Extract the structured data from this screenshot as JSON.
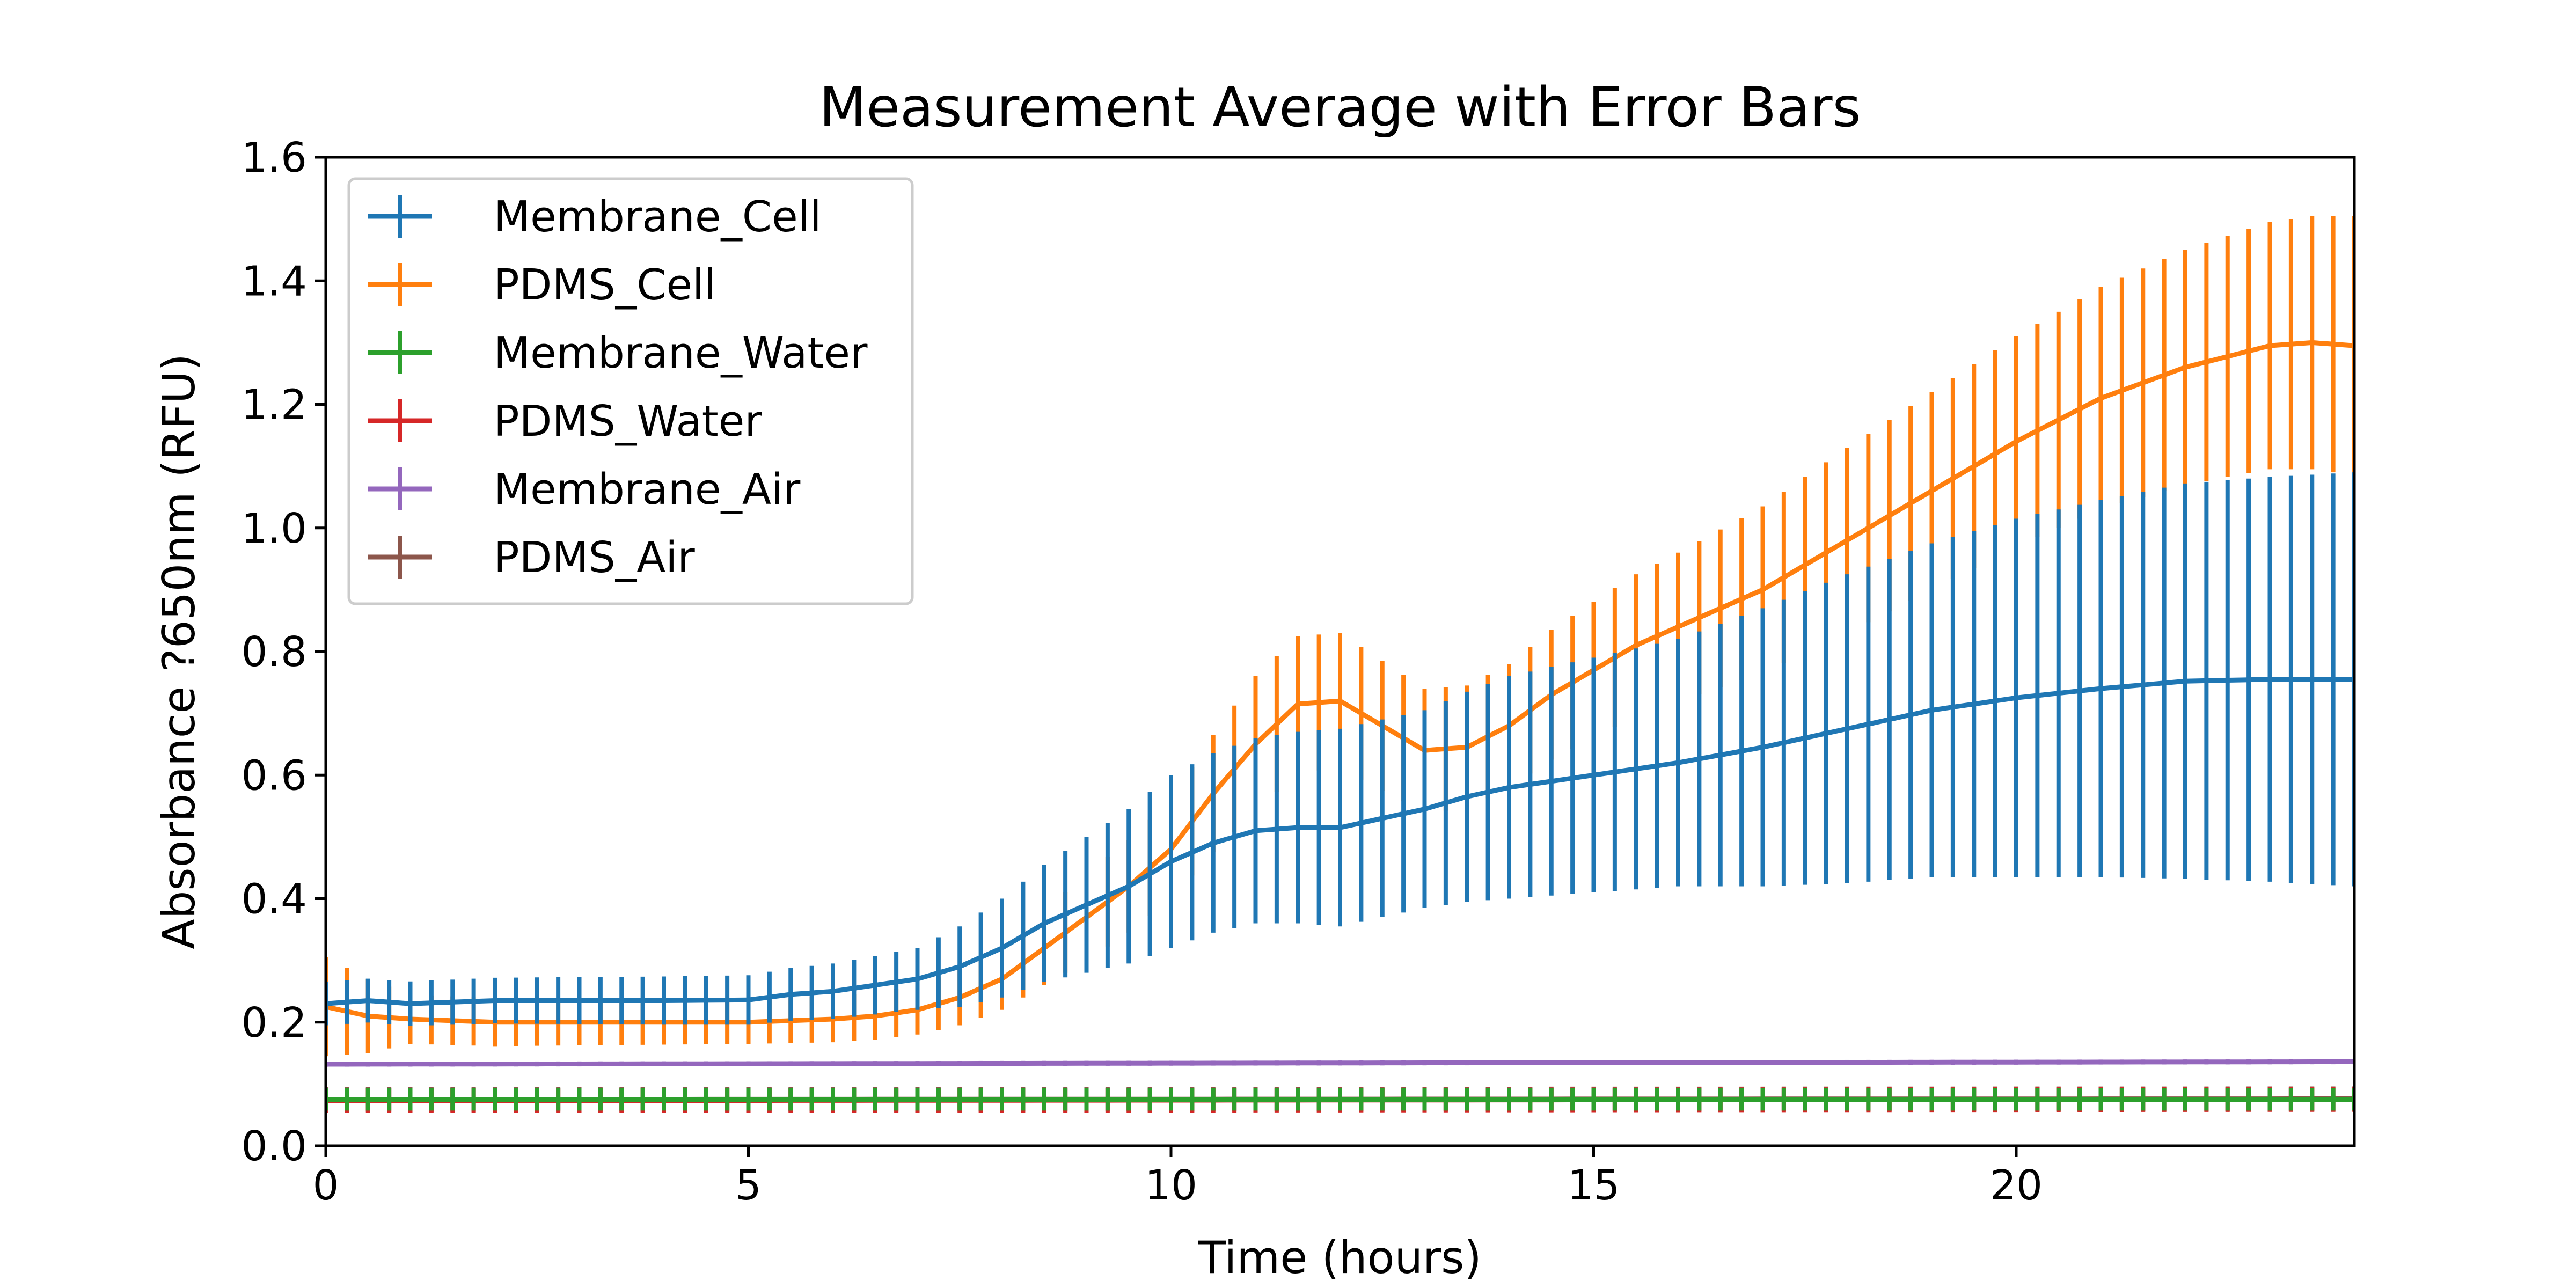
{
  "chart_data": {
    "type": "line",
    "title": "Measurement Average with Error Bars",
    "xlabel": "Time (hours)",
    "ylabel": "Absorbance ?650nm (RFU)",
    "xlim": [
      0,
      24
    ],
    "ylim": [
      0,
      1.6
    ],
    "xticks": [
      0,
      5,
      10,
      15,
      20
    ],
    "yticks": [
      0.0,
      0.2,
      0.4,
      0.6,
      0.8,
      1.0,
      1.2,
      1.4,
      1.6
    ],
    "xtick_labels": [
      "0",
      "5",
      "10",
      "15",
      "20"
    ],
    "ytick_labels": [
      "0.0",
      "0.2",
      "0.4",
      "0.6",
      "0.8",
      "1.0",
      "1.2",
      "1.4",
      "1.6"
    ],
    "grid": false,
    "legend_position": "top-left",
    "error_bars": true,
    "sampling_interval_hours": 0.25,
    "series": [
      {
        "name": "Membrane_Cell",
        "color": "#1f77b4",
        "knots": [
          [
            0,
            0.23
          ],
          [
            0.5,
            0.235
          ],
          [
            1,
            0.23
          ],
          [
            2,
            0.235
          ],
          [
            3,
            0.235
          ],
          [
            4,
            0.235
          ],
          [
            5,
            0.236
          ],
          [
            5.5,
            0.245
          ],
          [
            6,
            0.25
          ],
          [
            6.5,
            0.26
          ],
          [
            7,
            0.27
          ],
          [
            7.5,
            0.29
          ],
          [
            8,
            0.32
          ],
          [
            8.5,
            0.36
          ],
          [
            9,
            0.39
          ],
          [
            9.5,
            0.42
          ],
          [
            10,
            0.46
          ],
          [
            10.5,
            0.49
          ],
          [
            11,
            0.51
          ],
          [
            11.5,
            0.515
          ],
          [
            12,
            0.515
          ],
          [
            12.5,
            0.53
          ],
          [
            13,
            0.545
          ],
          [
            13.5,
            0.565
          ],
          [
            14,
            0.58
          ],
          [
            15,
            0.6
          ],
          [
            16,
            0.62
          ],
          [
            17,
            0.645
          ],
          [
            18,
            0.675
          ],
          [
            19,
            0.705
          ],
          [
            20,
            0.725
          ],
          [
            21,
            0.74
          ],
          [
            22,
            0.752
          ],
          [
            23,
            0.755
          ],
          [
            24,
            0.755
          ]
        ],
        "error_knots": [
          [
            0,
            0.035
          ],
          [
            5,
            0.04
          ],
          [
            6,
            0.045
          ],
          [
            7,
            0.05
          ],
          [
            8,
            0.08
          ],
          [
            9,
            0.11
          ],
          [
            10,
            0.14
          ],
          [
            11,
            0.15
          ],
          [
            12,
            0.16
          ],
          [
            13,
            0.16
          ],
          [
            14,
            0.18
          ],
          [
            16,
            0.2
          ],
          [
            18,
            0.25
          ],
          [
            20,
            0.29
          ],
          [
            22,
            0.32
          ],
          [
            24,
            0.335
          ]
        ]
      },
      {
        "name": "PDMS_Cell",
        "color": "#ff7f0e",
        "knots": [
          [
            0,
            0.225
          ],
          [
            0.5,
            0.21
          ],
          [
            1,
            0.205
          ],
          [
            2,
            0.2
          ],
          [
            3,
            0.2
          ],
          [
            4,
            0.2
          ],
          [
            5,
            0.2
          ],
          [
            6,
            0.205
          ],
          [
            6.5,
            0.21
          ],
          [
            7,
            0.22
          ],
          [
            7.5,
            0.24
          ],
          [
            8,
            0.27
          ],
          [
            8.5,
            0.32
          ],
          [
            9,
            0.37
          ],
          [
            9.5,
            0.42
          ],
          [
            10,
            0.48
          ],
          [
            10.5,
            0.57
          ],
          [
            11,
            0.65
          ],
          [
            11.5,
            0.715
          ],
          [
            12,
            0.72
          ],
          [
            12.5,
            0.68
          ],
          [
            13,
            0.64
          ],
          [
            13.5,
            0.645
          ],
          [
            14,
            0.68
          ],
          [
            14.5,
            0.73
          ],
          [
            15,
            0.77
          ],
          [
            15.5,
            0.81
          ],
          [
            16,
            0.84
          ],
          [
            17,
            0.9
          ],
          [
            18,
            0.98
          ],
          [
            19,
            1.06
          ],
          [
            20,
            1.14
          ],
          [
            21,
            1.21
          ],
          [
            22,
            1.26
          ],
          [
            23,
            1.295
          ],
          [
            23.5,
            1.3
          ],
          [
            24,
            1.295
          ]
        ],
        "error_knots": [
          [
            0,
            0.08
          ],
          [
            1,
            0.04
          ],
          [
            5,
            0.035
          ],
          [
            7,
            0.04
          ],
          [
            8,
            0.05
          ],
          [
            9,
            0.07
          ],
          [
            10,
            0.08
          ],
          [
            11,
            0.11
          ],
          [
            12,
            0.11
          ],
          [
            13,
            0.1
          ],
          [
            14,
            0.1
          ],
          [
            16,
            0.12
          ],
          [
            18,
            0.15
          ],
          [
            20,
            0.17
          ],
          [
            22,
            0.19
          ],
          [
            24,
            0.21
          ]
        ]
      },
      {
        "name": "Membrane_Water",
        "color": "#2ca02c",
        "knots": [
          [
            0,
            0.075
          ],
          [
            24,
            0.075
          ]
        ],
        "error_knots": [
          [
            0,
            0.018
          ],
          [
            24,
            0.018
          ]
        ]
      },
      {
        "name": "PDMS_Water",
        "color": "#d62728",
        "knots": [
          [
            0,
            0.073
          ],
          [
            24,
            0.075
          ]
        ],
        "error_knots": [
          [
            0,
            0.02
          ],
          [
            24,
            0.02
          ]
        ]
      },
      {
        "name": "Membrane_Air",
        "color": "#9467bd",
        "knots": [
          [
            0,
            0.132
          ],
          [
            24,
            0.136
          ]
        ],
        "error_knots": [
          [
            0,
            0.004
          ],
          [
            24,
            0.004
          ]
        ]
      },
      {
        "name": "PDMS_Air",
        "color": "#8c564b",
        "knots": [
          [
            0,
            0.075
          ],
          [
            24,
            0.076
          ]
        ],
        "error_knots": [
          [
            0,
            0.02
          ],
          [
            24,
            0.02
          ]
        ]
      }
    ]
  }
}
